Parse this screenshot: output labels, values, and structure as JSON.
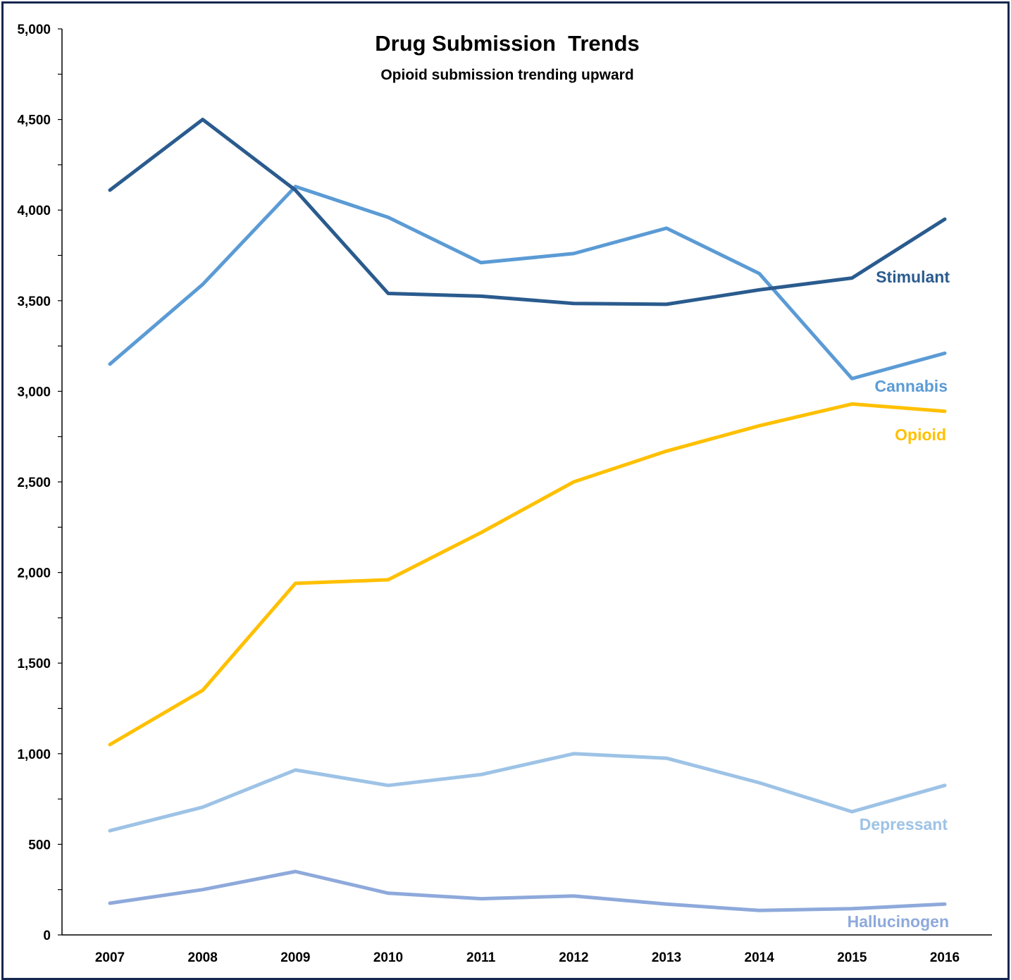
{
  "chart_data": {
    "type": "line",
    "title": "Drug Submission  Trends",
    "subtitle": "Opioid submission trending upward",
    "xlabel": "",
    "ylabel": "",
    "categories": [
      "2007",
      "2008",
      "2009",
      "2010",
      "2011",
      "2012",
      "2013",
      "2014",
      "2015",
      "2016"
    ],
    "ylim": [
      0,
      5000
    ],
    "y_ticks": [
      "0",
      "500",
      "1,000",
      "1,500",
      "2,000",
      "2,500",
      "3,000",
      "3,500",
      "4,000",
      "4,500",
      "5,000"
    ],
    "grid": false,
    "legend": "labels at line ends (right)",
    "series": [
      {
        "name": "Stimulant",
        "color": "#2a5b8e",
        "values": [
          4110,
          4500,
          4110,
          3540,
          3525,
          3485,
          3480,
          3560,
          3625,
          3950
        ]
      },
      {
        "name": "Cannabis",
        "color": "#5b9bd5",
        "values": [
          3150,
          3590,
          4130,
          3960,
          3710,
          3760,
          3900,
          3650,
          3070,
          3210
        ]
      },
      {
        "name": "Opioid",
        "color": "#ffc000",
        "values": [
          1050,
          1350,
          1940,
          1960,
          2220,
          2500,
          2670,
          2810,
          2930,
          2890
        ]
      },
      {
        "name": "Depressant",
        "color": "#9dc3e6",
        "values": [
          575,
          705,
          910,
          825,
          885,
          1000,
          975,
          840,
          680,
          825
        ]
      },
      {
        "name": "Hallucinogen",
        "color": "#8ea9db",
        "values": [
          175,
          250,
          350,
          230,
          200,
          215,
          170,
          135,
          145,
          170
        ]
      }
    ]
  }
}
